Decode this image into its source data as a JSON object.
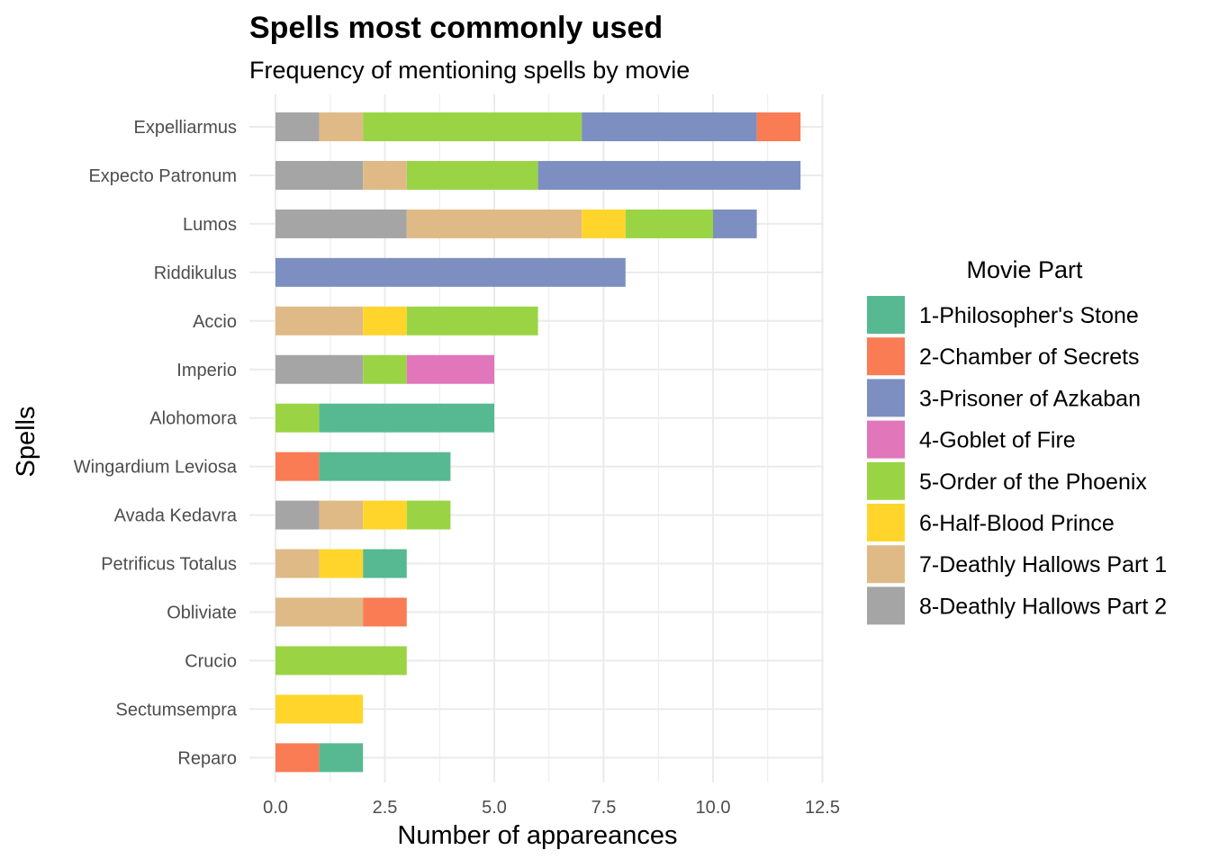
{
  "chart_data": {
    "type": "bar",
    "orientation": "horizontal",
    "stacked": true,
    "title": "Spells most commonly used",
    "subtitle": "Frequency of mentioning spells by movie",
    "xlabel": "Number of appareances",
    "ylabel": "Spells",
    "xlim": [
      0,
      12.5
    ],
    "xticks": [
      "0.0",
      "2.5",
      "5.0",
      "7.5",
      "10.0",
      "12.5"
    ],
    "xtick_values": [
      0,
      2.5,
      5,
      7.5,
      10,
      12.5
    ],
    "grid": true,
    "legend_title": "Movie Part",
    "legend_position": "right",
    "categories": [
      "Expelliarmus",
      "Expecto Patronum",
      "Lumos",
      "Riddikulus",
      "Accio",
      "Imperio",
      "Alohomora",
      "Wingardium Leviosa",
      "Avada Kedavra",
      "Petrificus Totalus",
      "Obliviate",
      "Crucio",
      "Sectumsempra",
      "Reparo"
    ],
    "stack_order": [
      "8-Deathly Hallows Part 2",
      "7-Deathly Hallows Part 1",
      "6-Half-Blood Prince",
      "5-Order of the Phoenix",
      "4-Goblet of Fire",
      "3-Prisoner of Azkaban",
      "2-Chamber of Secrets",
      "1-Philosopher's Stone"
    ],
    "series": [
      {
        "name": "1-Philosopher's Stone",
        "color": "#57B992",
        "values": [
          0,
          0,
          0,
          0,
          0,
          0,
          4,
          3,
          0,
          1,
          0,
          0,
          0,
          1
        ]
      },
      {
        "name": "2-Chamber of Secrets",
        "color": "#F97C55",
        "values": [
          1,
          0,
          0,
          0,
          0,
          0,
          0,
          1,
          0,
          0,
          1,
          0,
          0,
          1
        ]
      },
      {
        "name": "3-Prisoner of Azkaban",
        "color": "#7D8FC1",
        "values": [
          4,
          6,
          1,
          8,
          0,
          0,
          0,
          0,
          0,
          0,
          0,
          0,
          0,
          0
        ]
      },
      {
        "name": "4-Goblet of Fire",
        "color": "#E276BA",
        "values": [
          0,
          0,
          0,
          0,
          0,
          2,
          0,
          0,
          0,
          0,
          0,
          0,
          0,
          0
        ]
      },
      {
        "name": "5-Order of the Phoenix",
        "color": "#9AD444",
        "values": [
          5,
          3,
          2,
          0,
          3,
          1,
          1,
          0,
          1,
          0,
          0,
          3,
          0,
          0
        ]
      },
      {
        "name": "6-Half-Blood Prince",
        "color": "#FFD52C",
        "values": [
          0,
          0,
          1,
          0,
          1,
          0,
          0,
          0,
          1,
          1,
          0,
          0,
          2,
          0
        ]
      },
      {
        "name": "7-Deathly Hallows Part 1",
        "color": "#DFBA86",
        "values": [
          1,
          1,
          4,
          0,
          2,
          0,
          0,
          0,
          1,
          1,
          2,
          0,
          0,
          0
        ]
      },
      {
        "name": "8-Deathly Hallows Part 2",
        "color": "#A5A5A5",
        "values": [
          1,
          2,
          3,
          0,
          0,
          2,
          0,
          0,
          1,
          0,
          0,
          0,
          0,
          0
        ]
      }
    ]
  }
}
